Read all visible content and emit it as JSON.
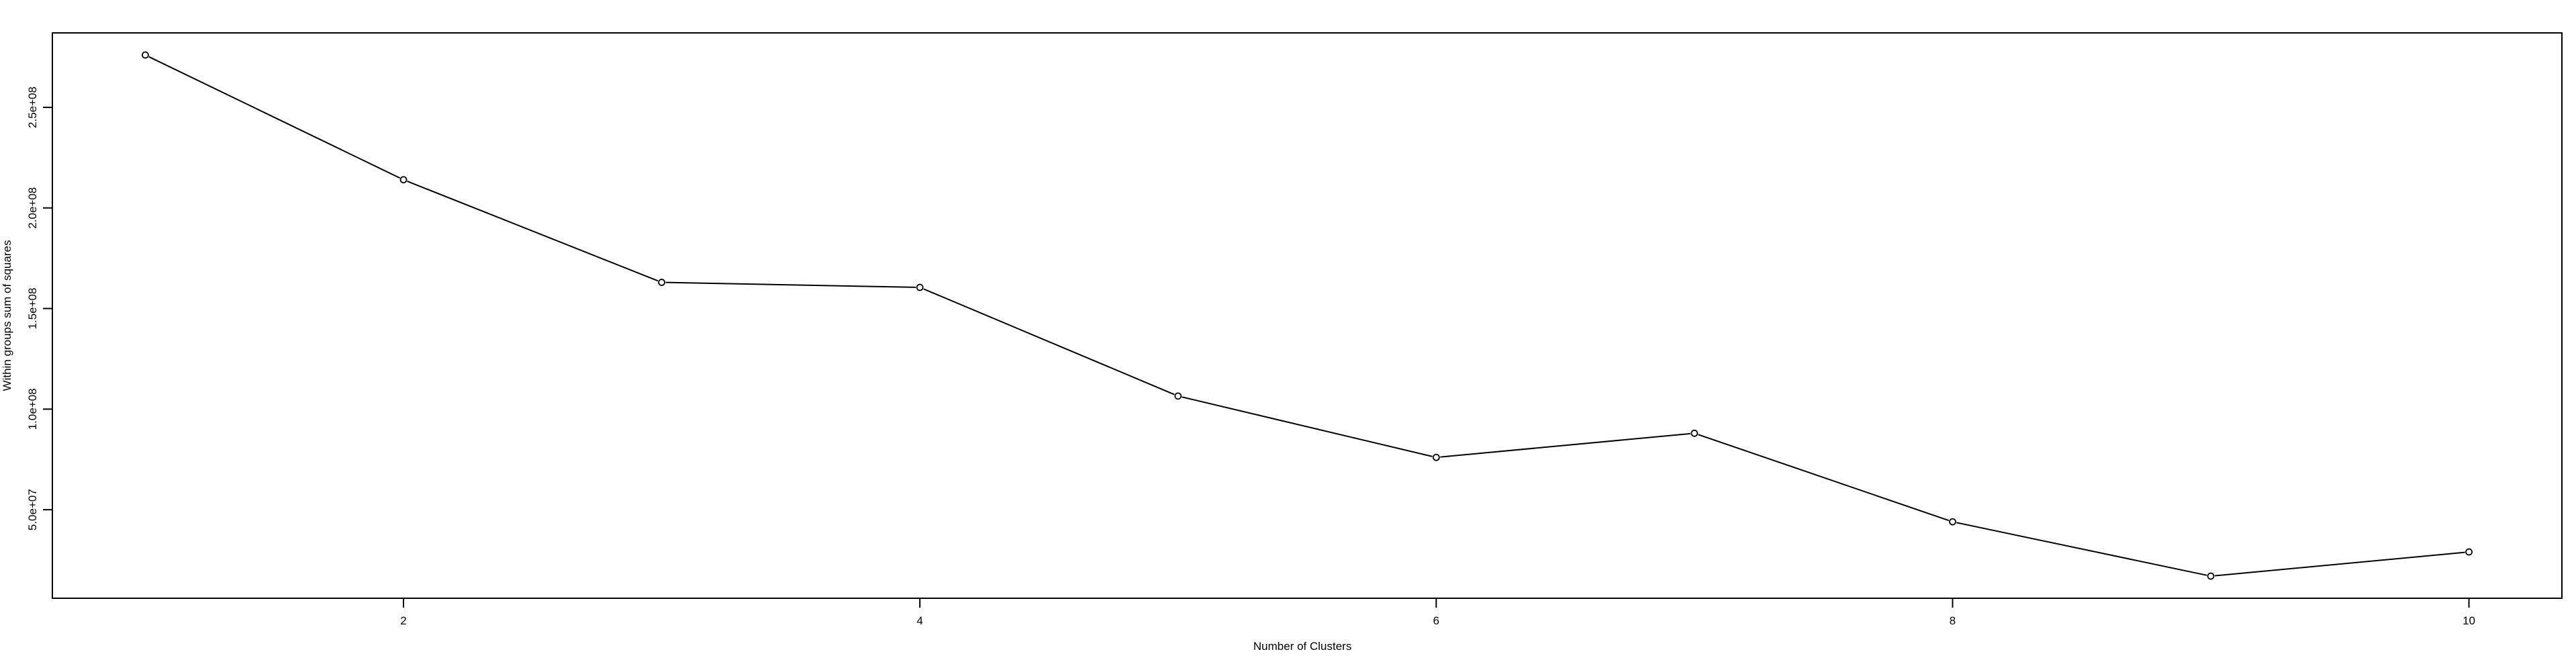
{
  "chart_data": {
    "type": "line",
    "xlabel": "Number of Clusters",
    "ylabel": "Within groups sum of squares",
    "x": [
      1,
      2,
      3,
      4,
      5,
      6,
      7,
      8,
      9,
      10
    ],
    "series": [
      {
        "values": [
          276000000,
          214000000,
          163000000,
          160500000,
          106500000,
          76000000,
          88000000,
          44000000,
          17000000,
          29000000
        ]
      }
    ],
    "xlim": [
      0.64,
      10.36
    ],
    "ylim": [
      6000000,
      287000000
    ],
    "x_ticks": [
      {
        "value": 2,
        "label": "2"
      },
      {
        "value": 4,
        "label": "4"
      },
      {
        "value": 6,
        "label": "6"
      },
      {
        "value": 8,
        "label": "8"
      },
      {
        "value": 10,
        "label": "10"
      }
    ],
    "y_ticks": [
      {
        "value": 50000000,
        "label": "5.0e+07"
      },
      {
        "value": 100000000,
        "label": "1.0e+08"
      },
      {
        "value": 150000000,
        "label": "1.5e+08"
      },
      {
        "value": 200000000,
        "label": "2.0e+08"
      },
      {
        "value": 250000000,
        "label": "2.5e+08"
      }
    ],
    "markers": "open-circle",
    "grid": false,
    "legend": "none",
    "colors": {
      "line": "#000000",
      "axis": "#000000",
      "background": "#ffffff"
    }
  }
}
